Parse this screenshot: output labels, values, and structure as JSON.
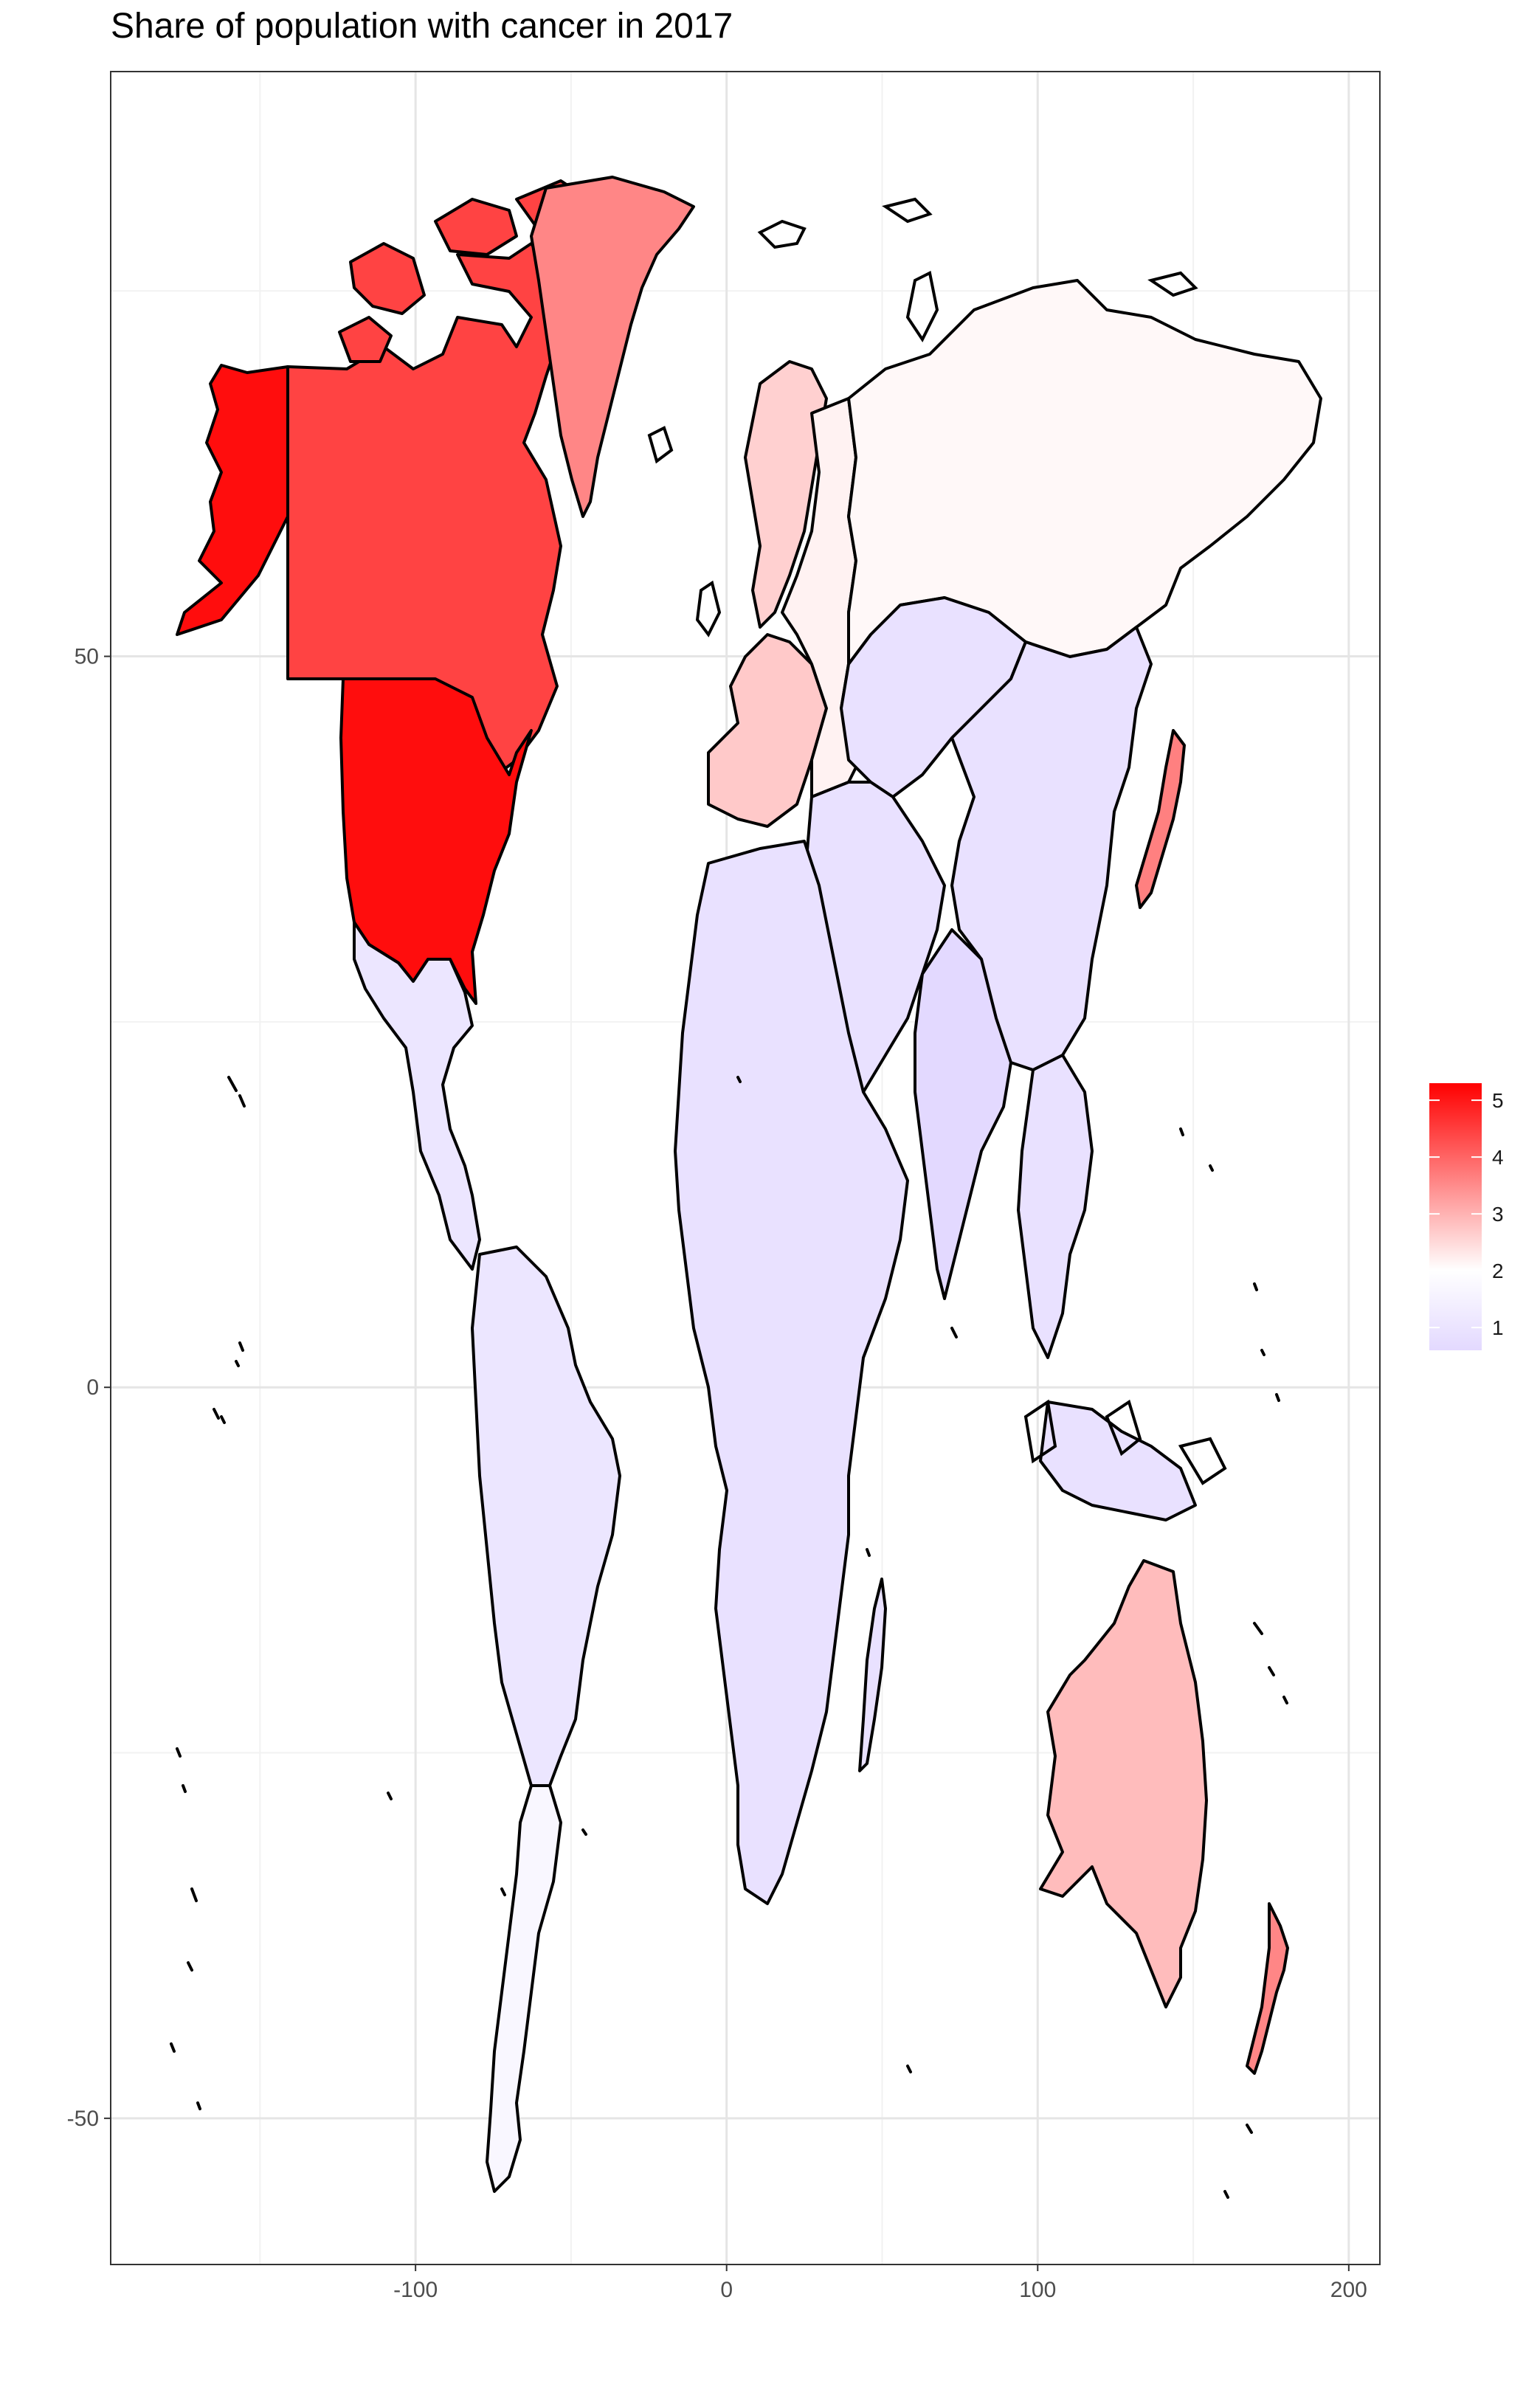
{
  "title": "Share of population with cancer in 2017",
  "chart_data": {
    "type": "choropleth-map",
    "title": "Share of population with cancer in 2017",
    "xlabel": "",
    "ylabel": "",
    "x_ticks": [
      -100,
      0,
      100,
      200
    ],
    "y_ticks": [
      -50,
      0,
      50
    ],
    "xlim": [
      -198,
      210
    ],
    "ylim": [
      -60,
      90
    ],
    "grid": true,
    "legend": {
      "position": "right",
      "type": "colorbar",
      "breaks": [
        1,
        2,
        3,
        4,
        5
      ],
      "low_color": "#e3d9ff",
      "mid_color": "#ffffff",
      "high_color": "#ff0000"
    },
    "regions": [
      {
        "region": "United States",
        "value": 5.1
      },
      {
        "region": "Canada",
        "value": 4.3
      },
      {
        "region": "Alaska (USA)",
        "value": 5.1
      },
      {
        "region": "Greenland",
        "value": 3.3
      },
      {
        "region": "Australia",
        "value": 2.5
      },
      {
        "region": "New Zealand",
        "value": 3.3
      },
      {
        "region": "Japan",
        "value": 3.4
      },
      {
        "region": "Western Europe",
        "value": 2.3
      },
      {
        "region": "Scandinavia",
        "value": 2.2
      },
      {
        "region": "Eastern Europe",
        "value": 1.7
      },
      {
        "region": "Russia",
        "value": 1.6
      },
      {
        "region": "China",
        "value": 0.8
      },
      {
        "region": "Central Asia",
        "value": 0.8
      },
      {
        "region": "Middle East",
        "value": 0.8
      },
      {
        "region": "India",
        "value": 0.6
      },
      {
        "region": "Southeast Asia",
        "value": 0.8
      },
      {
        "region": "Mexico",
        "value": 0.9
      },
      {
        "region": "Central America",
        "value": 0.9
      },
      {
        "region": "South America (north)",
        "value": 0.9
      },
      {
        "region": "Chile & Argentina",
        "value": 1.3
      },
      {
        "region": "Africa",
        "value": 0.8
      }
    ]
  }
}
